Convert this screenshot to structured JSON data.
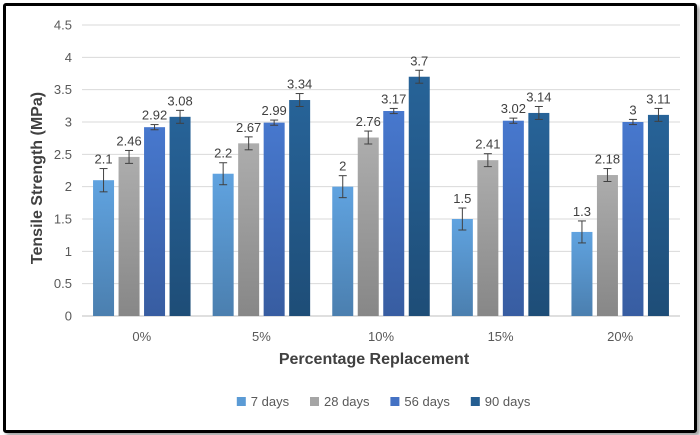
{
  "chart_data": {
    "type": "bar",
    "title": "",
    "xlabel": "Percentage Replacement",
    "ylabel": "Tensile Strength (MPa)",
    "ylim": [
      0,
      4.5
    ],
    "ytick_step": 0.5,
    "grid": true,
    "legend_position": "bottom",
    "categories": [
      "0%",
      "5%",
      "10%",
      "15%",
      "20%"
    ],
    "series": [
      {
        "name": "7 days",
        "color": "#5B9BD5",
        "values": [
          2.1,
          2.2,
          2.0,
          1.5,
          1.3
        ],
        "labels": [
          "2.1",
          "2.2",
          "2",
          "1.5",
          "1.3"
        ],
        "errors": [
          0.18,
          0.17,
          0.17,
          0.17,
          0.17
        ]
      },
      {
        "name": "28 days",
        "color": "#A5A5A5",
        "values": [
          2.46,
          2.67,
          2.76,
          2.41,
          2.18
        ],
        "labels": [
          "2.46",
          "2.67",
          "2.76",
          "2.41",
          "2.18"
        ],
        "errors": [
          0.1,
          0.1,
          0.1,
          0.1,
          0.1
        ]
      },
      {
        "name": "56 days",
        "color": "#4472C4",
        "values": [
          2.92,
          2.99,
          3.17,
          3.02,
          3.0
        ],
        "labels": [
          "2.92",
          "2.99",
          "3.17",
          "3.02",
          "3"
        ],
        "errors": [
          0.04,
          0.04,
          0.04,
          0.04,
          0.04
        ]
      },
      {
        "name": "90 days",
        "color": "#255E91",
        "values": [
          3.08,
          3.34,
          3.7,
          3.14,
          3.11
        ],
        "labels": [
          "3.08",
          "3.34",
          "3.7",
          "3.14",
          "3.11"
        ],
        "errors": [
          0.1,
          0.1,
          0.1,
          0.1,
          0.1
        ]
      }
    ]
  }
}
